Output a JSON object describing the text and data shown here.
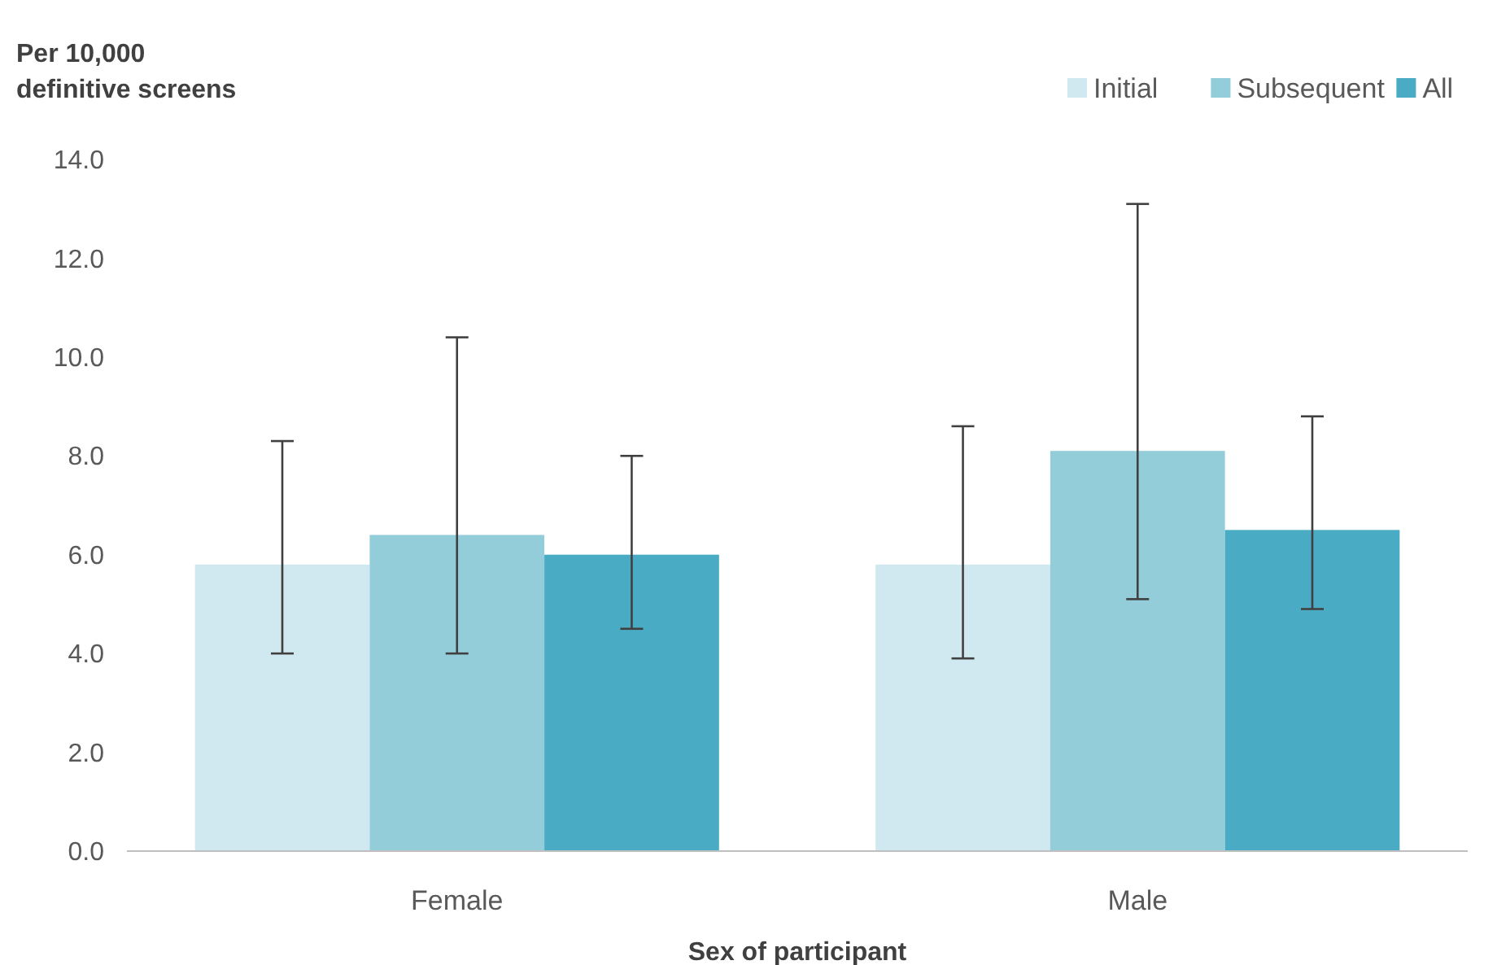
{
  "chart_data": {
    "type": "bar",
    "ylabel": "Per 10,000 definitive screens",
    "xlabel": "Sex of participant",
    "categories": [
      "Female",
      "Male"
    ],
    "series": [
      {
        "name": "Initial",
        "color": "#d0e8ef",
        "values": [
          5.8,
          5.8
        ],
        "errors": [
          [
            4.0,
            8.3
          ],
          [
            3.9,
            8.6
          ]
        ]
      },
      {
        "name": "Subsequent",
        "color": "#92cdd9",
        "values": [
          6.4,
          8.1
        ],
        "errors": [
          [
            4.0,
            10.4
          ],
          [
            5.1,
            13.1
          ]
        ]
      },
      {
        "name": "All",
        "color": "#4aabc5",
        "values": [
          6.0,
          6.5
        ],
        "errors": [
          [
            4.5,
            8.0
          ],
          [
            4.9,
            8.8
          ]
        ]
      }
    ],
    "ylim": [
      0,
      14
    ],
    "yticks": [
      {
        "value": 0,
        "label": "0.0"
      },
      {
        "value": 2,
        "label": "2.0"
      },
      {
        "value": 4,
        "label": "4.0"
      },
      {
        "value": 6,
        "label": "6.0"
      },
      {
        "value": 8,
        "label": "8.0"
      },
      {
        "value": 10,
        "label": "10.0"
      },
      {
        "value": 12,
        "label": "12.0"
      },
      {
        "value": 14,
        "label": "14.0"
      }
    ],
    "grid": false,
    "legend": "top right"
  }
}
